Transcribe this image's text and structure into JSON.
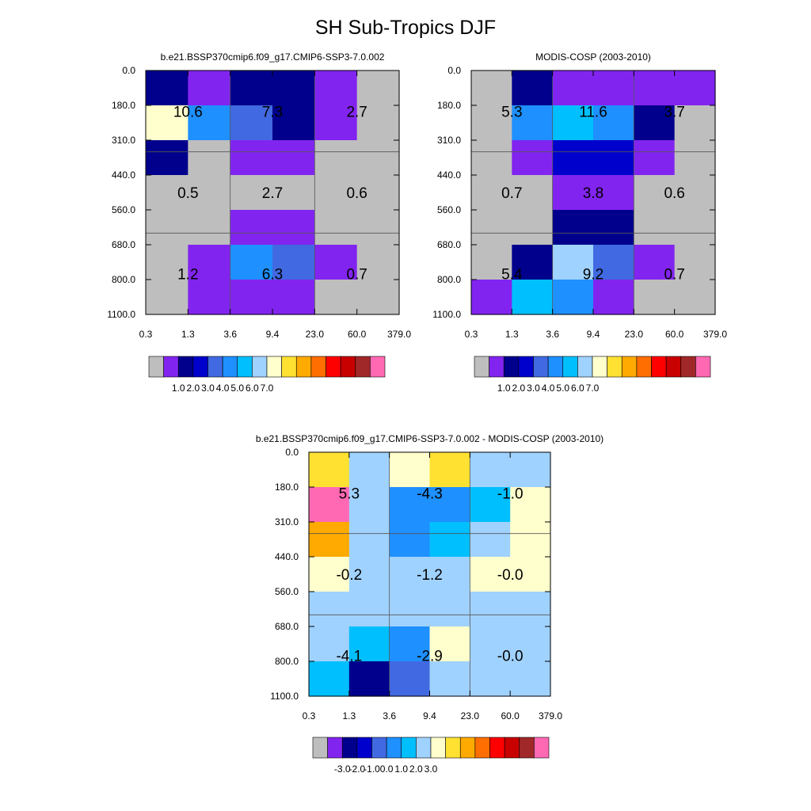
{
  "figure_title": "SH Sub-Tropics DJF",
  "colors": {
    "palette": [
      "#bebebe",
      "#8224f0",
      "#00008c",
      "#0000cd",
      "#4169e1",
      "#1e90ff",
      "#00bfff",
      "#a0d2ff",
      "#ffffcd",
      "#ffe132",
      "#ffaa00",
      "#ff6e00",
      "#ff0000",
      "#c80000",
      "#a02828",
      "#ff69b4"
    ],
    "grid_line": "#555555",
    "axis": "#000000"
  },
  "chart_data": [
    {
      "type": "heatmap",
      "title": "b.e21.BSSP370cmip6.f09_g17.CMIP6-SSP3-7.0.002",
      "xlabel": "",
      "ylabel": "",
      "x_ticks": [
        "0.3",
        "1.3",
        "3.6",
        "9.4",
        "23.0",
        "60.0",
        "379.0"
      ],
      "y_ticks": [
        "0.0",
        "180.0",
        "310.0",
        "440.0",
        "560.0",
        "680.0",
        "800.0",
        "1100.0"
      ],
      "cells": [
        [
          2,
          1,
          2,
          2,
          1,
          0
        ],
        [
          8,
          5,
          4,
          2,
          1,
          0
        ],
        [
          2,
          0,
          1,
          1,
          0,
          0
        ],
        [
          0,
          0,
          0,
          0,
          0,
          0
        ],
        [
          0,
          0,
          1,
          1,
          0,
          0
        ],
        [
          0,
          1,
          5,
          4,
          1,
          0
        ],
        [
          0,
          1,
          1,
          1,
          0,
          0
        ]
      ],
      "annotations": [
        {
          "row": 0,
          "col": 0,
          "text": "10.6"
        },
        {
          "row": 0,
          "col": 1,
          "text": "7.3"
        },
        {
          "row": 0,
          "col": 2,
          "text": "2.7"
        },
        {
          "row": 1,
          "col": 0,
          "text": "0.5"
        },
        {
          "row": 1,
          "col": 1,
          "text": "2.7"
        },
        {
          "row": 1,
          "col": 2,
          "text": "0.6"
        },
        {
          "row": 2,
          "col": 0,
          "text": "1.2"
        },
        {
          "row": 2,
          "col": 1,
          "text": "6.3"
        },
        {
          "row": 2,
          "col": 2,
          "text": "0.7"
        }
      ],
      "colorbar_labels": [
        "1.0",
        "2.0",
        "3.0",
        "4.0",
        "5.0",
        "6.0",
        "7.0"
      ]
    },
    {
      "type": "heatmap",
      "title": "MODIS-COSP (2003-2010)",
      "xlabel": "",
      "ylabel": "",
      "x_ticks": [
        "0.3",
        "1.3",
        "3.6",
        "9.4",
        "23.0",
        "60.0",
        "379.0"
      ],
      "y_ticks": [
        "0.0",
        "180.0",
        "310.0",
        "440.0",
        "560.0",
        "680.0",
        "800.0",
        "1100.0"
      ],
      "cells": [
        [
          0,
          2,
          1,
          1,
          1,
          1
        ],
        [
          0,
          5,
          6,
          5,
          2,
          0
        ],
        [
          0,
          1,
          3,
          3,
          1,
          0
        ],
        [
          0,
          0,
          1,
          1,
          0,
          0
        ],
        [
          0,
          0,
          2,
          2,
          0,
          0
        ],
        [
          0,
          2,
          7,
          4,
          1,
          0
        ],
        [
          1,
          6,
          5,
          1,
          0,
          0
        ]
      ],
      "annotations": [
        {
          "row": 0,
          "col": 0,
          "text": "5.3"
        },
        {
          "row": 0,
          "col": 1,
          "text": "11.6"
        },
        {
          "row": 0,
          "col": 2,
          "text": "3.7"
        },
        {
          "row": 1,
          "col": 0,
          "text": "0.7"
        },
        {
          "row": 1,
          "col": 1,
          "text": "3.8"
        },
        {
          "row": 1,
          "col": 2,
          "text": "0.6"
        },
        {
          "row": 2,
          "col": 0,
          "text": "5.4"
        },
        {
          "row": 2,
          "col": 1,
          "text": "9.2"
        },
        {
          "row": 2,
          "col": 2,
          "text": "0.7"
        }
      ],
      "colorbar_labels": [
        "1.0",
        "2.0",
        "3.0",
        "4.0",
        "5.0",
        "6.0",
        "7.0"
      ]
    },
    {
      "type": "heatmap",
      "title": "b.e21.BSSP370cmip6.f09_g17.CMIP6-SSP3-7.0.002 - MODIS-COSP (2003-2010)",
      "xlabel": "",
      "ylabel": "",
      "x_ticks": [
        "0.3",
        "1.3",
        "3.6",
        "9.4",
        "23.0",
        "60.0",
        "379.0"
      ],
      "y_ticks": [
        "0.0",
        "180.0",
        "310.0",
        "440.0",
        "560.0",
        "680.0",
        "800.0",
        "1100.0"
      ],
      "cells": [
        [
          9,
          7,
          8,
          9,
          7,
          7
        ],
        [
          15,
          7,
          5,
          5,
          6,
          8
        ],
        [
          10,
          7,
          5,
          6,
          7,
          8
        ],
        [
          8,
          7,
          7,
          7,
          8,
          8
        ],
        [
          7,
          7,
          7,
          7,
          7,
          7
        ],
        [
          7,
          6,
          5,
          8,
          7,
          7
        ],
        [
          6,
          2,
          4,
          7,
          7,
          7
        ]
      ],
      "annotations": [
        {
          "row": 0,
          "col": 0,
          "text": "5.3"
        },
        {
          "row": 0,
          "col": 1,
          "text": "-4.3"
        },
        {
          "row": 0,
          "col": 2,
          "text": "-1.0"
        },
        {
          "row": 1,
          "col": 0,
          "text": "-0.2"
        },
        {
          "row": 1,
          "col": 1,
          "text": "-1.2"
        },
        {
          "row": 1,
          "col": 2,
          "text": "-0.0"
        },
        {
          "row": 2,
          "col": 0,
          "text": "-4.1"
        },
        {
          "row": 2,
          "col": 1,
          "text": "-2.9"
        },
        {
          "row": 2,
          "col": 2,
          "text": "-0.0"
        }
      ],
      "colorbar_labels": [
        "-3.0",
        "-2.0",
        "-1.0",
        "0.0",
        "1.0",
        "2.0",
        "3.0"
      ]
    }
  ]
}
